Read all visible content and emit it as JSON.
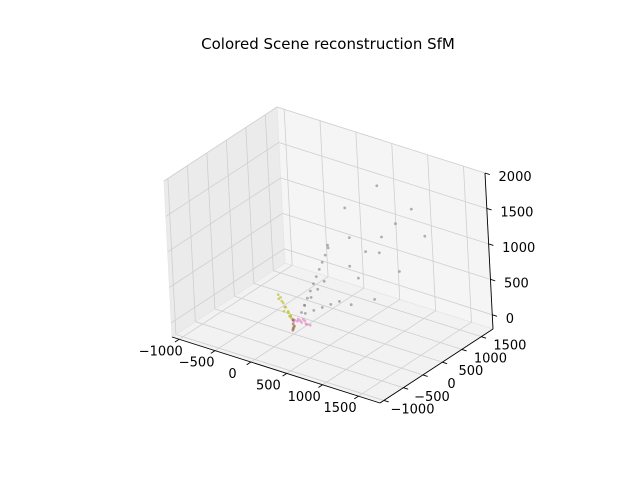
{
  "chart_data": {
    "type": "scatter",
    "projection": "3d",
    "title": "Colored Scene reconstruction SfM",
    "xlabel": "",
    "ylabel": "",
    "zlabel": "",
    "grid": true,
    "xlim": [
      -1100,
      1800
    ],
    "ylim": [
      -1100,
      1800
    ],
    "zlim": [
      -200,
      2000
    ],
    "x_ticks": [
      -1000,
      -500,
      0,
      500,
      1000,
      1500
    ],
    "x_tick_labels": [
      "−1000",
      "−500",
      "0",
      "500",
      "1000",
      "1500"
    ],
    "y_ticks": [
      -1000,
      -500,
      0,
      500,
      1000,
      1500
    ],
    "y_tick_labels": [
      "−1000",
      "−500",
      "0",
      "500",
      "1000",
      "1500"
    ],
    "z_ticks": [
      0,
      500,
      1000,
      1500,
      2000
    ],
    "z_tick_labels": [
      "0",
      "500",
      "1000",
      "1500",
      "2000"
    ],
    "series": [
      {
        "color": "#7f7f7f",
        "points": [
          [
            80,
            80,
            100
          ],
          [
            110,
            110,
            200
          ],
          [
            140,
            140,
            300
          ],
          [
            170,
            170,
            400
          ],
          [
            200,
            200,
            500
          ],
          [
            230,
            230,
            600
          ],
          [
            260,
            260,
            700
          ],
          [
            290,
            290,
            800
          ],
          [
            320,
            320,
            900
          ],
          [
            350,
            350,
            1000
          ],
          [
            150,
            50,
            120
          ],
          [
            250,
            90,
            180
          ],
          [
            350,
            130,
            240
          ],
          [
            450,
            170,
            300
          ],
          [
            550,
            210,
            360
          ],
          [
            60,
            200,
            150
          ],
          [
            90,
            320,
            230
          ],
          [
            120,
            440,
            310
          ],
          [
            150,
            560,
            390
          ],
          [
            500,
            600,
            700
          ],
          [
            650,
            750,
            900
          ],
          [
            800,
            900,
            1100
          ],
          [
            950,
            1000,
            1300
          ],
          [
            1100,
            1150,
            1500
          ],
          [
            400,
            800,
            1000
          ],
          [
            700,
            450,
            650
          ],
          [
            900,
            650,
            1000
          ],
          [
            300,
            900,
            1350
          ],
          [
            1200,
            600,
            850
          ],
          [
            600,
            1200,
            1650
          ],
          [
            1000,
            300,
            500
          ],
          [
            1300,
            1100,
            1200
          ],
          [
            200,
            600,
            900
          ],
          [
            750,
            150,
            400
          ]
        ]
      },
      {
        "color": "#bcbd22",
        "points": [
          [
            0,
            0,
            0
          ],
          [
            -20,
            -20,
            60
          ],
          [
            -40,
            -40,
            120
          ],
          [
            -60,
            -60,
            180
          ],
          [
            -80,
            -80,
            240
          ],
          [
            -30,
            0,
            40
          ],
          [
            -60,
            0,
            80
          ],
          [
            0,
            -40,
            40
          ],
          [
            0,
            -80,
            80
          ],
          [
            -50,
            -100,
            200
          ],
          [
            -100,
            -80,
            260
          ],
          [
            -120,
            -120,
            300
          ],
          [
            -40,
            -140,
            160
          ],
          [
            40,
            -60,
            20
          ],
          [
            -20,
            40,
            -120
          ],
          [
            -40,
            60,
            -160
          ],
          [
            -80,
            -140,
            340
          ],
          [
            -100,
            -160,
            380
          ]
        ]
      },
      {
        "color": "#e377c2",
        "points": [
          [
            0,
            0,
            0
          ],
          [
            60,
            0,
            0
          ],
          [
            120,
            0,
            0
          ],
          [
            180,
            0,
            0
          ],
          [
            240,
            0,
            0
          ],
          [
            90,
            20,
            10
          ],
          [
            150,
            30,
            20
          ],
          [
            210,
            -20,
            10
          ],
          [
            40,
            60,
            0
          ],
          [
            100,
            80,
            10
          ],
          [
            30,
            -40,
            0
          ],
          [
            0,
            40,
            -20
          ]
        ]
      },
      {
        "color": "#8c564b",
        "points": [
          [
            0,
            0,
            0
          ],
          [
            0,
            0,
            -60
          ],
          [
            0,
            0,
            -120
          ],
          [
            10,
            10,
            -90
          ],
          [
            -10,
            0,
            -150
          ]
        ]
      }
    ]
  }
}
